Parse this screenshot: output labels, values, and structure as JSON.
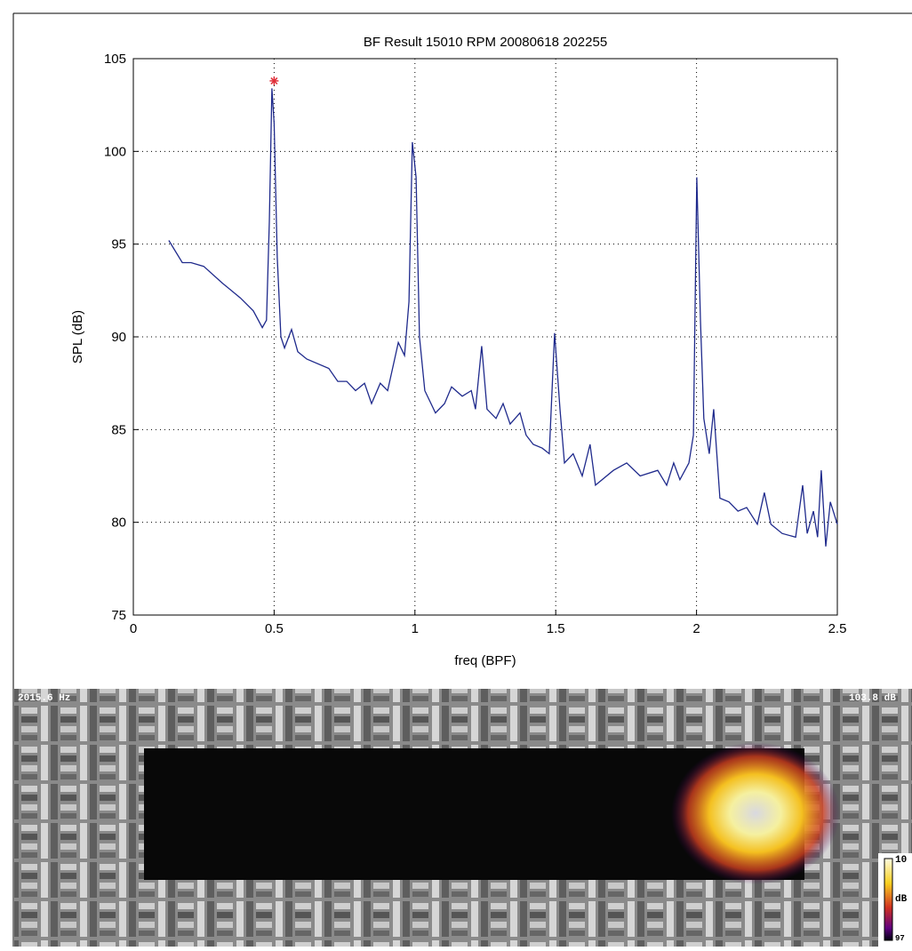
{
  "chart_data": {
    "type": "line",
    "title": "BF Result 15010 RPM  20080618 202255",
    "xlabel": "freq (BPF)",
    "ylabel": "SPL (dB)",
    "x": [
      0.126,
      0.174,
      0.205,
      0.25,
      0.316,
      0.38,
      0.426,
      0.458,
      0.473,
      0.483,
      0.492,
      0.5,
      0.511,
      0.524,
      0.537,
      0.562,
      0.584,
      0.616,
      0.694,
      0.726,
      0.758,
      0.789,
      0.821,
      0.846,
      0.877,
      0.903,
      0.941,
      0.963,
      0.979,
      0.991,
      1.004,
      1.016,
      1.035,
      1.057,
      1.073,
      1.105,
      1.13,
      1.168,
      1.2,
      1.215,
      1.237,
      1.256,
      1.288,
      1.313,
      1.338,
      1.373,
      1.395,
      1.42,
      1.452,
      1.477,
      1.496,
      1.515,
      1.531,
      1.562,
      1.594,
      1.622,
      1.641,
      1.705,
      1.752,
      1.8,
      1.862,
      1.894,
      1.919,
      1.941,
      1.973,
      1.989,
      2.001,
      2.014,
      2.026,
      2.045,
      2.061,
      2.083,
      2.115,
      2.147,
      2.178,
      2.216,
      2.241,
      2.264,
      2.304,
      2.352,
      2.377,
      2.393,
      2.415,
      2.43,
      2.443,
      2.459,
      2.475,
      2.5
    ],
    "values": [
      95.2,
      94.0,
      94.0,
      93.8,
      92.9,
      92.1,
      91.4,
      90.5,
      90.9,
      96.2,
      103.4,
      101.5,
      94.3,
      90.0,
      89.4,
      90.4,
      89.2,
      88.8,
      88.3,
      87.6,
      87.6,
      87.1,
      87.5,
      86.4,
      87.5,
      87.1,
      89.7,
      89.0,
      91.9,
      100.5,
      98.6,
      90.0,
      87.1,
      86.4,
      85.9,
      86.4,
      87.3,
      86.8,
      87.1,
      86.1,
      89.5,
      86.1,
      85.6,
      86.4,
      85.3,
      85.9,
      84.7,
      84.2,
      84.0,
      83.7,
      90.2,
      86.1,
      83.2,
      83.7,
      82.5,
      84.2,
      82.0,
      82.8,
      83.2,
      82.5,
      82.8,
      82.0,
      83.2,
      82.3,
      83.2,
      84.7,
      98.6,
      90.9,
      85.6,
      83.7,
      86.1,
      81.3,
      81.1,
      80.6,
      80.8,
      79.9,
      81.6,
      79.9,
      79.4,
      79.2,
      82.0,
      79.4,
      80.6,
      79.2,
      82.8,
      78.7,
      81.1,
      79.9
    ],
    "color": "#1f2a8c",
    "peak": {
      "x": 0.5,
      "y": 103.8,
      "color": "#e0303a"
    },
    "xlim": [
      0,
      2.5
    ],
    "xticks": [
      0,
      0.5,
      1,
      1.5,
      2,
      2.5
    ],
    "ylim": [
      75,
      105
    ],
    "yticks": [
      75,
      80,
      85,
      90,
      95,
      100,
      105
    ],
    "grid": true
  },
  "image": {
    "freq_label": "2015.6 Hz",
    "level_label": "103.8 dB",
    "colorbar": {
      "top": "10",
      "unit": "dB",
      "bottom": "97"
    }
  }
}
